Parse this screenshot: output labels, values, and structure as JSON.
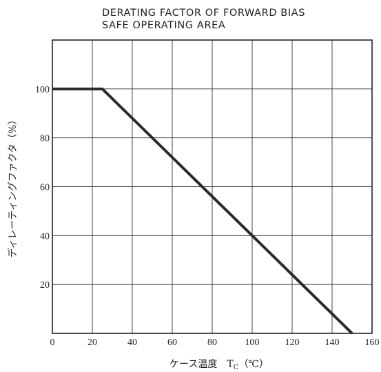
{
  "chart_data": {
    "type": "line",
    "title_lines": [
      "DERATING FACTOR OF FORWARD BIAS",
      "SAFE OPERATING AREA"
    ],
    "xlabel": "ケース温度　T",
    "xlabel_sub": "C",
    "xlabel_unit": "（℃）",
    "ylabel": "ディレーティングファクタ（%）",
    "xlim": [
      0,
      160
    ],
    "ylim": [
      0,
      120
    ],
    "x_ticks": [
      0,
      20,
      40,
      60,
      80,
      100,
      120,
      140,
      160
    ],
    "y_ticks": [
      20,
      40,
      60,
      80,
      100
    ],
    "y_gridlines": [
      20,
      40,
      60,
      80,
      100,
      120
    ],
    "grid": true,
    "series": [
      {
        "x": [
          0,
          25,
          150
        ],
        "y": [
          100,
          100,
          0
        ]
      }
    ]
  }
}
